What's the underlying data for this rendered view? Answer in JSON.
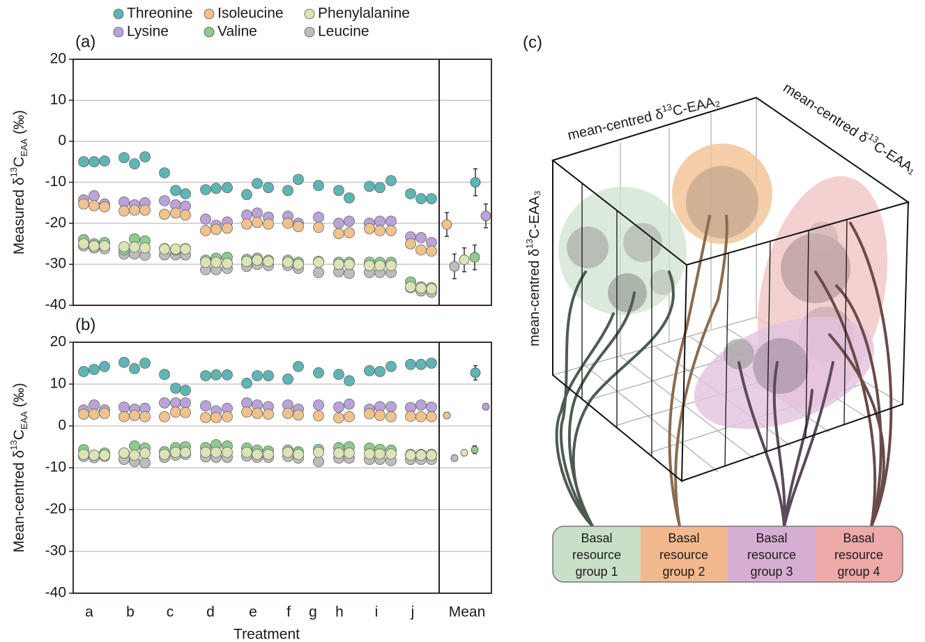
{
  "chart_data": [
    {
      "type": "scatter",
      "panel_label": "(a)",
      "ylabel": [
        "Measured δ",
        "13",
        "C",
        "EAA",
        " (‰)"
      ],
      "x": [
        0.75,
        1.5,
        2.25,
        3.65,
        4.4,
        5.15,
        6.55,
        7.35,
        8.05,
        9.5,
        10.25,
        11.05,
        12.45,
        13.2,
        14,
        15.4,
        16.15,
        17.6,
        19.05,
        19.8,
        21.25,
        22,
        22.8,
        24.2,
        24.95,
        25.7
      ],
      "xlim": [
        0,
        30
      ],
      "ylim": [
        -40,
        20
      ],
      "yticks": [
        -40,
        -30,
        -20,
        -10,
        0,
        10,
        20
      ],
      "grid": true,
      "series": [
        {
          "name": "Threonine",
          "color": "#5fb4b4",
          "values": [
            -5,
            -5,
            -4.8,
            -4,
            -5.5,
            -3.8,
            -7.7,
            -12,
            -12.8,
            -11.8,
            -11.5,
            -11.3,
            -13,
            -10.3,
            -11.3,
            -12,
            -9.3,
            -10.8,
            -12,
            -13.8,
            -11,
            -11.3,
            -9.6,
            -12.8,
            -14,
            -14
          ],
          "mean_x": 28.85,
          "mean": -10,
          "mean_error": 3.3
        },
        {
          "name": "Isoleucine",
          "color": "#efc28e",
          "values": [
            -15.3,
            -15.7,
            -16,
            -17,
            -16.8,
            -16.8,
            -17.8,
            -17.5,
            -18,
            -21.8,
            -21.5,
            -21.2,
            -20.2,
            -19.8,
            -20.2,
            -20,
            -20.8,
            -21,
            -22.5,
            -22.3,
            -21.3,
            -21.8,
            -21.8,
            -25,
            -26.5,
            -26.8
          ],
          "mean_x": 26.8,
          "mean": -20.3,
          "mean_error": 2.9
        },
        {
          "name": "Phenylalanine",
          "color": "#dbe4b5",
          "values": [
            -25,
            -25.5,
            -25.5,
            -25.7,
            -25.8,
            -26,
            -26.3,
            -26.3,
            -26.3,
            -29.5,
            -29.5,
            -29.8,
            -29.3,
            -29,
            -29.3,
            -29.5,
            -30,
            -29.5,
            -30,
            -30,
            -30.3,
            -30.3,
            -30.3,
            -35.5,
            -35.8,
            -36
          ],
          "mean_x": 28.05,
          "mean": -28.9,
          "mean_error": 2.9
        },
        {
          "name": "Lysine",
          "color": "#b9a3d9",
          "values": [
            -14.3,
            -13.3,
            -15.3,
            -14.8,
            -15.5,
            -15,
            -14.5,
            -15.5,
            -15.8,
            -19,
            -20.5,
            -19.7,
            -18,
            -17.5,
            -18.5,
            -18.3,
            -20,
            -18.5,
            -20,
            -19.5,
            -20,
            -19.5,
            -19.5,
            -23.3,
            -23.5,
            -24.7
          ],
          "mean_x": 29.6,
          "mean": -18.2,
          "mean_error": 2.9
        },
        {
          "name": "Valine",
          "color": "#8dcb8e",
          "values": [
            -24,
            -25,
            -24.7,
            -26.5,
            -23.8,
            -24.3,
            -26.2,
            -26.5,
            -26.2,
            -29,
            -28.5,
            -28.3,
            -28.8,
            -28.5,
            -29,
            -29,
            -29.5,
            -29.3,
            -29.5,
            -29.5,
            -29.5,
            -29.5,
            -29.5,
            -34.3,
            -35.5,
            -35.7
          ],
          "mean_x": 28.8,
          "mean": -28.3,
          "mean_error": 3
        },
        {
          "name": "Leucine",
          "color": "#bdbdbd",
          "values": [
            -25.5,
            -26,
            -26.2,
            -27.5,
            -27.5,
            -27.8,
            -27.7,
            -27.7,
            -27.7,
            -31.3,
            -31.3,
            -31,
            -30.5,
            -30,
            -30.3,
            -30.3,
            -31,
            -32,
            -31.8,
            -32.2,
            -32,
            -32,
            -32,
            -35.7,
            -36.5,
            -36.8
          ],
          "mean_x": 27.35,
          "mean": -30.5,
          "mean_error": 3
        }
      ]
    },
    {
      "type": "scatter",
      "panel_label": "(b)",
      "ylabel": [
        "Mean-centred δ",
        "13",
        "C",
        "EAA",
        " (‰)"
      ],
      "xlabel": "Treatment",
      "x": [
        0.75,
        1.5,
        2.25,
        3.65,
        4.4,
        5.15,
        6.55,
        7.35,
        8.05,
        9.5,
        10.25,
        11.05,
        12.45,
        13.2,
        14,
        15.4,
        16.15,
        17.6,
        19.05,
        19.8,
        21.25,
        22,
        22.8,
        24.2,
        24.95,
        25.7
      ],
      "xlim": [
        0,
        30
      ],
      "xticks": [
        {
          "value": 1.15,
          "label": "a"
        },
        {
          "value": 4.1,
          "label": "b"
        },
        {
          "value": 6.95,
          "label": "c"
        },
        {
          "value": 9.85,
          "label": "d"
        },
        {
          "value": 12.9,
          "label": "e"
        },
        {
          "value": 15.45,
          "label": "f"
        },
        {
          "value": 17.2,
          "label": "g"
        },
        {
          "value": 19.1,
          "label": "h"
        },
        {
          "value": 21.75,
          "label": "i"
        },
        {
          "value": 24.35,
          "label": "j"
        },
        {
          "value": 28.25,
          "label": "Mean"
        }
      ],
      "ylim": [
        -40,
        20
      ],
      "yticks": [
        -40,
        -30,
        -20,
        -10,
        0,
        10,
        20
      ],
      "grid": true,
      "series": [
        {
          "color": "#5fb4b4",
          "values": [
            13,
            13.5,
            14.2,
            15.2,
            13.7,
            15,
            12.3,
            9,
            8.5,
            12,
            12.2,
            12.2,
            10.2,
            12,
            12,
            11.2,
            14.2,
            12.7,
            12.3,
            10.8,
            13.2,
            13,
            14.2,
            14.7,
            14.7,
            15
          ],
          "mean_x": 28.85,
          "mean": 12.7,
          "mean_error": 1.7
        },
        {
          "color": "#efc28e",
          "values": [
            2.8,
            2.8,
            3,
            2.2,
            2.5,
            2.2,
            2.2,
            3.3,
            3.2,
            2,
            2,
            2.2,
            3.3,
            3,
            2.8,
            3,
            2.6,
            2.4,
            1.9,
            2.2,
            2.9,
            2.5,
            2.2,
            2.3,
            2.2,
            2.2
          ],
          "mean_x": 26.8,
          "mean": 2.5,
          "mean_error": 0.7
        },
        {
          "color": "#dbe4b5",
          "values": [
            -6.8,
            -7,
            -7,
            -6.5,
            -7,
            -6.5,
            -6.8,
            -6.3,
            -6.3,
            -6.3,
            -6.3,
            -6.3,
            -6.3,
            -6.8,
            -6.8,
            -6.3,
            -6.8,
            -6.3,
            -6.5,
            -6.5,
            -6.7,
            -6.7,
            -6.7,
            -7,
            -7,
            -7
          ],
          "mean_x": 28.05,
          "mean": -6.4,
          "mean_error": 0.7
        },
        {
          "color": "#b9a3d9",
          "values": [
            3.8,
            5,
            3.8,
            4.5,
            4,
            4.2,
            5.5,
            5.5,
            5.5,
            4.8,
            3.6,
            4.2,
            5.5,
            5,
            4.6,
            5,
            4,
            5,
            4.5,
            5.2,
            4,
            4.6,
            4.6,
            4.4,
            5,
            4.5
          ],
          "mean_x": 29.6,
          "mean": 4.6,
          "mean_error": 0.7
        },
        {
          "color": "#8dcb8e",
          "values": [
            -5.7,
            -7,
            -6.5,
            -6.5,
            -4.8,
            -5.3,
            -6.2,
            -5.2,
            -5,
            -5.2,
            -4.5,
            -4.8,
            -5.3,
            -5.8,
            -6,
            -5.8,
            -6.2,
            -5.6,
            -5.2,
            -5,
            -5.3,
            -5.6,
            -5.8,
            -6.8,
            -6.8,
            -6.8
          ],
          "mean_x": 28.8,
          "mean": -5.7,
          "mean_error": 0.9
        },
        {
          "color": "#bdbdbd",
          "values": [
            -7.3,
            -7.6,
            -7.3,
            -8,
            -8.5,
            -8.8,
            -7.5,
            -7,
            -6.8,
            -7.4,
            -7.5,
            -7.5,
            -7.2,
            -7.5,
            -7.5,
            -7.3,
            -7.7,
            -8.5,
            -7.7,
            -7.7,
            -8,
            -8,
            -8.3,
            -8,
            -8,
            -8
          ],
          "mean_x": 27.35,
          "mean": -7.7,
          "mean_error": 0.7
        }
      ]
    }
  ],
  "diagram": {
    "panel_label": "(c)",
    "axis_labels": [
      [
        "mean-centred δ",
        "13",
        "C-EAA₂"
      ],
      [
        "mean-centred δ",
        "13",
        "C-EAA₁"
      ],
      [
        "mean-centred δ",
        "13",
        "C-EAA₃"
      ]
    ],
    "groups": [
      [
        "Basal",
        "resource",
        "group 1"
      ],
      [
        "Basal",
        "resource",
        "group 2"
      ],
      [
        "Basal",
        "resource",
        "group 3"
      ],
      [
        "Basal",
        "resource",
        "group 4"
      ]
    ]
  }
}
